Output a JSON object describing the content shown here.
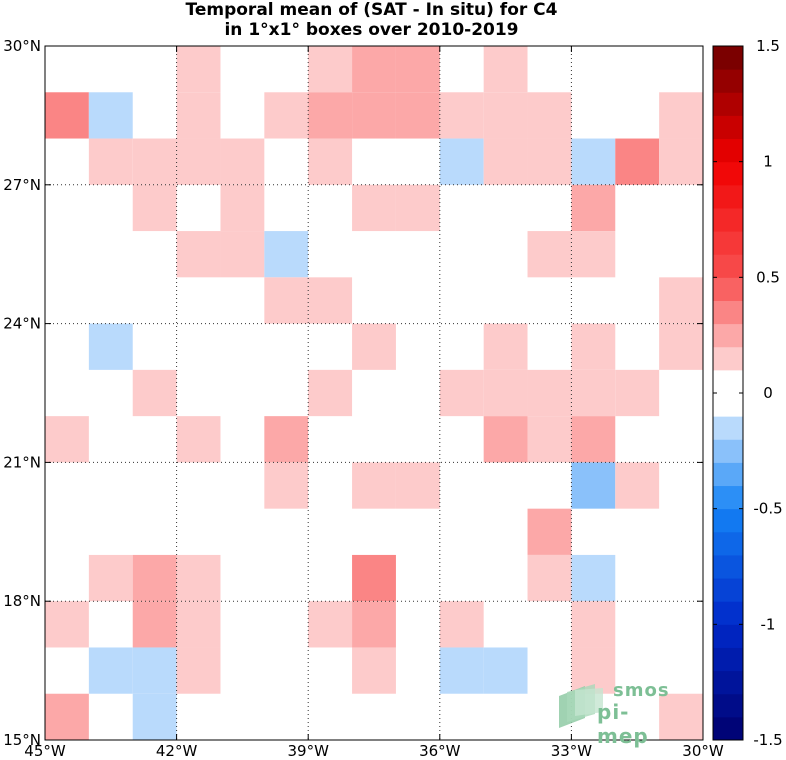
{
  "title": {
    "line1": "Temporal mean of (SAT - In situ) for C4",
    "line2": "in 1°x1° boxes over 2010-2019"
  },
  "map": {
    "lon_range": [
      -45,
      -30
    ],
    "lat_range": [
      15,
      30
    ],
    "gridlines": "dotted",
    "x_ticks": [
      {
        "lon": -45,
        "label": "45°W"
      },
      {
        "lon": -42,
        "label": "42°W"
      },
      {
        "lon": -39,
        "label": "39°W"
      },
      {
        "lon": -36,
        "label": "36°W"
      },
      {
        "lon": -33,
        "label": "33°W"
      },
      {
        "lon": -30,
        "label": "30°W"
      }
    ],
    "y_ticks": [
      {
        "lat": 15,
        "label": "15°N"
      },
      {
        "lat": 18,
        "label": "18°N"
      },
      {
        "lat": 21,
        "label": "21°N"
      },
      {
        "lat": 24,
        "label": "24°N"
      },
      {
        "lat": 27,
        "label": "27°N"
      },
      {
        "lat": 30,
        "label": "30°N"
      }
    ]
  },
  "chart_data": {
    "type": "heatmap",
    "title": "Temporal mean of (SAT - In situ) for C4 in 1°x1° boxes over 2010-2019",
    "value_range": [
      -1.5,
      1.5
    ],
    "step": 0.1,
    "cells": [
      {
        "lon": -42,
        "lat": 29,
        "v": 0.15
      },
      {
        "lon": -39,
        "lat": 29,
        "v": 0.15
      },
      {
        "lon": -38,
        "lat": 29,
        "v": 0.25
      },
      {
        "lon": -37,
        "lat": 29,
        "v": 0.25
      },
      {
        "lon": -35,
        "lat": 29,
        "v": 0.15
      },
      {
        "lon": -45,
        "lat": 28,
        "v": 0.35
      },
      {
        "lon": -44,
        "lat": 28,
        "v": -0.15
      },
      {
        "lon": -42,
        "lat": 28,
        "v": 0.15
      },
      {
        "lon": -40,
        "lat": 28,
        "v": 0.15
      },
      {
        "lon": -39,
        "lat": 28,
        "v": 0.25
      },
      {
        "lon": -38,
        "lat": 28,
        "v": 0.25
      },
      {
        "lon": -37,
        "lat": 28,
        "v": 0.25
      },
      {
        "lon": -36,
        "lat": 28,
        "v": 0.15
      },
      {
        "lon": -35,
        "lat": 28,
        "v": 0.15
      },
      {
        "lon": -34,
        "lat": 28,
        "v": 0.15
      },
      {
        "lon": -31,
        "lat": 28,
        "v": 0.15
      },
      {
        "lon": -44,
        "lat": 27,
        "v": 0.15
      },
      {
        "lon": -43,
        "lat": 27,
        "v": 0.15
      },
      {
        "lon": -42,
        "lat": 27,
        "v": 0.15
      },
      {
        "lon": -41,
        "lat": 27,
        "v": 0.15
      },
      {
        "lon": -39,
        "lat": 27,
        "v": 0.15
      },
      {
        "lon": -36,
        "lat": 27,
        "v": -0.15
      },
      {
        "lon": -35,
        "lat": 27,
        "v": 0.15
      },
      {
        "lon": -34,
        "lat": 27,
        "v": 0.15
      },
      {
        "lon": -33,
        "lat": 27,
        "v": -0.15
      },
      {
        "lon": -32,
        "lat": 27,
        "v": 0.35
      },
      {
        "lon": -31,
        "lat": 27,
        "v": 0.15
      },
      {
        "lon": -43,
        "lat": 26,
        "v": 0.15
      },
      {
        "lon": -41,
        "lat": 26,
        "v": 0.15
      },
      {
        "lon": -38,
        "lat": 26,
        "v": 0.15
      },
      {
        "lon": -37,
        "lat": 26,
        "v": 0.15
      },
      {
        "lon": -33,
        "lat": 26,
        "v": 0.25
      },
      {
        "lon": -42,
        "lat": 25,
        "v": 0.15
      },
      {
        "lon": -41,
        "lat": 25,
        "v": 0.15
      },
      {
        "lon": -40,
        "lat": 25,
        "v": -0.15
      },
      {
        "lon": -34,
        "lat": 25,
        "v": 0.15
      },
      {
        "lon": -33,
        "lat": 25,
        "v": 0.15
      },
      {
        "lon": -40,
        "lat": 24,
        "v": 0.15
      },
      {
        "lon": -39,
        "lat": 24,
        "v": 0.15
      },
      {
        "lon": -31,
        "lat": 24,
        "v": 0.15
      },
      {
        "lon": -44,
        "lat": 23,
        "v": -0.15
      },
      {
        "lon": -38,
        "lat": 23,
        "v": 0.15
      },
      {
        "lon": -35,
        "lat": 23,
        "v": 0.15
      },
      {
        "lon": -33,
        "lat": 23,
        "v": 0.15
      },
      {
        "lon": -31,
        "lat": 23,
        "v": 0.15
      },
      {
        "lon": -43,
        "lat": 22,
        "v": 0.15
      },
      {
        "lon": -39,
        "lat": 22,
        "v": 0.15
      },
      {
        "lon": -36,
        "lat": 22,
        "v": 0.15
      },
      {
        "lon": -35,
        "lat": 22,
        "v": 0.15
      },
      {
        "lon": -34,
        "lat": 22,
        "v": 0.15
      },
      {
        "lon": -33,
        "lat": 22,
        "v": 0.15
      },
      {
        "lon": -32,
        "lat": 22,
        "v": 0.15
      },
      {
        "lon": -45,
        "lat": 21,
        "v": 0.15
      },
      {
        "lon": -42,
        "lat": 21,
        "v": 0.15
      },
      {
        "lon": -40,
        "lat": 21,
        "v": 0.25
      },
      {
        "lon": -35,
        "lat": 21,
        "v": 0.25
      },
      {
        "lon": -34,
        "lat": 21,
        "v": 0.15
      },
      {
        "lon": -33,
        "lat": 21,
        "v": 0.25
      },
      {
        "lon": -40,
        "lat": 20,
        "v": 0.15
      },
      {
        "lon": -38,
        "lat": 20,
        "v": 0.15
      },
      {
        "lon": -37,
        "lat": 20,
        "v": 0.15
      },
      {
        "lon": -33,
        "lat": 20,
        "v": -0.25
      },
      {
        "lon": -32,
        "lat": 20,
        "v": 0.15
      },
      {
        "lon": -34,
        "lat": 19,
        "v": 0.25
      },
      {
        "lon": -44,
        "lat": 18,
        "v": 0.15
      },
      {
        "lon": -43,
        "lat": 18,
        "v": 0.25
      },
      {
        "lon": -42,
        "lat": 18,
        "v": 0.15
      },
      {
        "lon": -38,
        "lat": 18,
        "v": 0.35
      },
      {
        "lon": -34,
        "lat": 18,
        "v": 0.15
      },
      {
        "lon": -33,
        "lat": 18,
        "v": -0.15
      },
      {
        "lon": -45,
        "lat": 17,
        "v": 0.15
      },
      {
        "lon": -43,
        "lat": 17,
        "v": 0.25
      },
      {
        "lon": -42,
        "lat": 17,
        "v": 0.15
      },
      {
        "lon": -39,
        "lat": 17,
        "v": 0.15
      },
      {
        "lon": -38,
        "lat": 17,
        "v": 0.25
      },
      {
        "lon": -36,
        "lat": 17,
        "v": 0.15
      },
      {
        "lon": -33,
        "lat": 17,
        "v": 0.15
      },
      {
        "lon": -44,
        "lat": 16,
        "v": -0.15
      },
      {
        "lon": -43,
        "lat": 16,
        "v": -0.15
      },
      {
        "lon": -42,
        "lat": 16,
        "v": 0.15
      },
      {
        "lon": -38,
        "lat": 16,
        "v": 0.15
      },
      {
        "lon": -36,
        "lat": 16,
        "v": -0.15
      },
      {
        "lon": -35,
        "lat": 16,
        "v": -0.15
      },
      {
        "lon": -33,
        "lat": 16,
        "v": 0.15
      },
      {
        "lon": -45,
        "lat": 15,
        "v": 0.25
      },
      {
        "lon": -43,
        "lat": 15,
        "v": -0.15
      },
      {
        "lon": -31,
        "lat": 15,
        "v": 0.15
      }
    ]
  },
  "colorbar": {
    "tick_labels": [
      {
        "value": 1.5,
        "label": "1.5"
      },
      {
        "value": 1,
        "label": "1"
      },
      {
        "value": 0.5,
        "label": "0.5"
      },
      {
        "value": 0,
        "label": "0"
      },
      {
        "value": -0.5,
        "label": "-0.5"
      },
      {
        "value": -1,
        "label": "-1"
      },
      {
        "value": -1.5,
        "label": "-1.5"
      }
    ]
  },
  "watermark": {
    "line1": "smos",
    "line2": "pi-mep"
  }
}
